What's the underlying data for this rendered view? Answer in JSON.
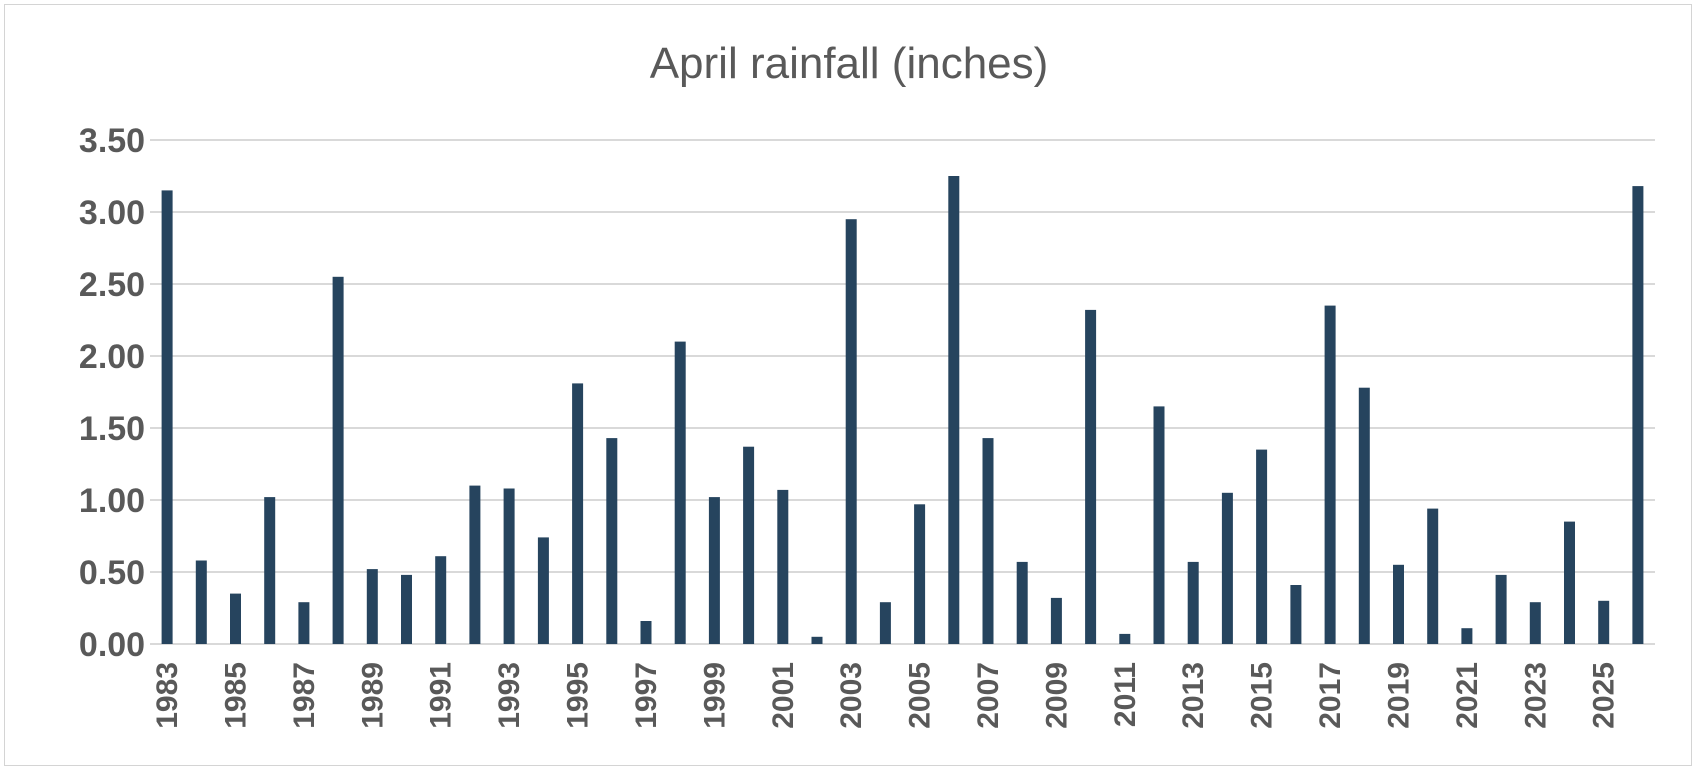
{
  "chart_data": {
    "type": "bar",
    "title": "April rainfall (inches)",
    "xlabel": "",
    "ylabel": "",
    "ylim": [
      0,
      3.5
    ],
    "ytick_values": [
      0,
      0.5,
      1,
      1.5,
      2,
      2.5,
      3,
      3.5
    ],
    "ytick_labels": [
      "0.00",
      "0.50",
      "1.00",
      "1.50",
      "2.00",
      "2.50",
      "3.00",
      "3.50"
    ],
    "categories": [
      "1983",
      "1984",
      "1985",
      "1986",
      "1987",
      "1988",
      "1989",
      "1990",
      "1991",
      "1992",
      "1993",
      "1994",
      "1995",
      "1996",
      "1997",
      "1998",
      "1999",
      "2000",
      "2001",
      "2002",
      "2003",
      "2004",
      "2005",
      "2006",
      "2007",
      "2008",
      "2009",
      "2010",
      "2011",
      "2012",
      "2013",
      "2014",
      "2015",
      "2016",
      "2017",
      "2018",
      "2019",
      "2020",
      "2021",
      "2022",
      "2023",
      "2024",
      "2025",
      "2026"
    ],
    "xtick_labels": [
      "1983",
      "1985",
      "1987",
      "1989",
      "1991",
      "1993",
      "1995",
      "1997",
      "1999",
      "2001",
      "2003",
      "2005",
      "2007",
      "2009",
      "2011",
      "2013",
      "2015",
      "2017",
      "2019",
      "2021",
      "2023",
      "2025"
    ],
    "values": [
      3.15,
      0.58,
      0.35,
      1.02,
      0.29,
      2.55,
      0.52,
      0.48,
      0.61,
      1.1,
      1.08,
      0.74,
      1.81,
      1.43,
      0.16,
      2.1,
      1.02,
      1.37,
      1.07,
      0.05,
      2.95,
      0.29,
      0.97,
      3.25,
      1.43,
      0.57,
      0.32,
      2.32,
      0.07,
      1.65,
      0.57,
      1.05,
      1.35,
      0.41,
      2.35,
      1.78,
      0.55,
      0.94,
      0.11,
      0.48,
      0.29,
      0.85,
      0.3,
      3.18
    ],
    "grid": true,
    "legend": "none",
    "bar_color": "#26445e"
  }
}
